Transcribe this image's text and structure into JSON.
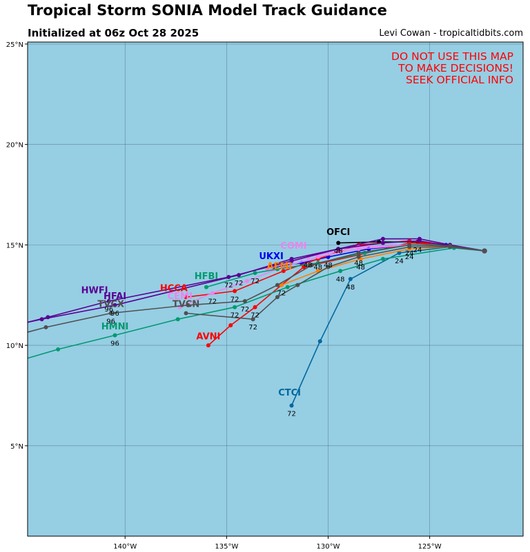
{
  "header": {
    "title": "Tropical Storm SONIA Model Track Guidance",
    "subtitle": "Initialized at 06z Oct 28 2025",
    "credit": "Levi Cowan - tropicaltidbits.com"
  },
  "map": {
    "ocean_color": "#96cee4",
    "warning": [
      "DO NOT USE THIS MAP",
      "TO MAKE DECISIONS!",
      "SEEK OFFICIAL INFO"
    ],
    "warning_color": "#ff0000",
    "lat_range": [
      0.5,
      25.1
    ],
    "lon_range": [
      -144.8,
      -120.4
    ],
    "lat_ticks": [
      {
        "value": 5,
        "label": "5°N"
      },
      {
        "value": 10,
        "label": "10°N"
      },
      {
        "value": 15,
        "label": "15°N"
      },
      {
        "value": 20,
        "label": "20°N"
      },
      {
        "value": 25,
        "label": "25°N"
      }
    ],
    "lon_ticks": [
      {
        "value": -140,
        "label": "140°W"
      },
      {
        "value": -135,
        "label": "135°W"
      },
      {
        "value": -130,
        "label": "130°W"
      },
      {
        "value": -125,
        "label": "125°W"
      }
    ]
  },
  "chart_data": {
    "type": "line",
    "tracks": [
      {
        "model": "OFCI",
        "color": "#000000",
        "label_at": [
          -129.5,
          15.5
        ],
        "points": [
          [
            -122.3,
            14.7
          ],
          [
            -124.0,
            14.95
          ],
          [
            -125.6,
            15.15
          ],
          [
            -127.5,
            15.15
          ],
          [
            -129.5,
            15.1
          ]
        ],
        "hour_labels": [
          {
            "text": "24",
            "at": [
              -125.6,
              15.15
            ]
          },
          {
            "text": "48",
            "at": [
              -129.5,
              15.1
            ]
          }
        ]
      },
      {
        "model": "UKXI",
        "color": "#0000ee",
        "label_at": [
          -132.8,
          14.3
        ],
        "points": [
          [
            -122.3,
            14.7
          ],
          [
            -124.2,
            15.0
          ],
          [
            -126.0,
            15.0
          ],
          [
            -128.0,
            14.8
          ],
          [
            -130.0,
            14.4
          ],
          [
            -131.3,
            14.1
          ],
          [
            -132.7,
            13.9
          ]
        ],
        "hour_labels": [
          {
            "text": "24",
            "at": [
              -126.0,
              15.0
            ]
          },
          {
            "text": "48",
            "at": [
              -130.0,
              14.4
            ]
          }
        ]
      },
      {
        "model": "CTCI",
        "color": "#00689c",
        "label_at": [
          -131.9,
          7.5
        ],
        "points": [
          [
            -122.3,
            14.7
          ],
          [
            -124.0,
            14.9
          ],
          [
            -126.5,
            14.6
          ],
          [
            -128.9,
            13.3
          ],
          [
            -130.4,
            10.2
          ],
          [
            -131.8,
            7.0
          ]
        ],
        "hour_labels": [
          {
            "text": "24",
            "at": [
              -126.5,
              14.6
            ]
          },
          {
            "text": "48",
            "at": [
              -128.9,
              13.3
            ]
          },
          {
            "text": "72",
            "at": [
              -131.8,
              7.0
            ]
          }
        ]
      },
      {
        "model": "AVNI",
        "color": "#ff0000",
        "label_at": [
          -135.9,
          10.3
        ],
        "points": [
          [
            -122.3,
            14.7
          ],
          [
            -124.0,
            15.0
          ],
          [
            -126.0,
            15.1
          ],
          [
            -128.5,
            14.5
          ],
          [
            -131.2,
            13.9
          ],
          [
            -132.3,
            13.0
          ],
          [
            -133.6,
            11.9
          ],
          [
            -134.8,
            11.0
          ],
          [
            -135.9,
            10.0
          ]
        ],
        "hour_labels": [
          {
            "text": "48",
            "at": [
              -128.5,
              14.5
            ]
          },
          {
            "text": "72",
            "at": [
              -133.6,
              11.9
            ]
          }
        ]
      },
      {
        "model": "HCCA",
        "color": "#ff0000",
        "label_at": [
          -137.6,
          12.7
        ],
        "points": [
          [
            -122.3,
            14.7
          ],
          [
            -124.0,
            15.0
          ],
          [
            -126.0,
            15.2
          ],
          [
            -128.5,
            15.0
          ],
          [
            -130.5,
            14.3
          ],
          [
            -132.2,
            13.7
          ],
          [
            -134.6,
            12.7
          ],
          [
            -137.0,
            12.4
          ]
        ],
        "hour_labels": [
          {
            "text": "48",
            "at": [
              -130.5,
              14.3
            ]
          },
          {
            "text": "72",
            "at": [
              -134.6,
              12.7
            ]
          }
        ]
      },
      {
        "model": "CEMI",
        "color": "#ee82ee",
        "label_at": [
          -137.3,
          12.3
        ],
        "points": [
          [
            -122.3,
            14.7
          ],
          [
            -124.0,
            15.0
          ],
          [
            -126.0,
            15.0
          ],
          [
            -128.5,
            14.8
          ],
          [
            -130.5,
            14.4
          ],
          [
            -132.5,
            13.8
          ],
          [
            -134.0,
            13.2
          ],
          [
            -135.7,
            12.6
          ],
          [
            -137.3,
            11.9
          ]
        ],
        "hour_labels": [
          {
            "text": "72",
            "at": [
              -135.7,
              12.6
            ]
          }
        ]
      },
      {
        "model": "COMI",
        "color": "#ee82ee",
        "label_at": [
          -131.7,
          14.8
        ],
        "points": [
          [
            -122.3,
            14.7
          ],
          [
            -124.0,
            14.95
          ],
          [
            -126.0,
            15.0
          ],
          [
            -128.5,
            14.9
          ],
          [
            -131.0,
            14.4
          ],
          [
            -133.0,
            13.8
          ]
        ],
        "hour_labels": [
          {
            "text": "48",
            "at": [
              -131.0,
              14.4
            ]
          }
        ]
      },
      {
        "model": "AEMI",
        "color": "#ff8000",
        "label_at": [
          -132.4,
          13.8
        ],
        "points": [
          [
            -122.3,
            14.7
          ],
          [
            -124.0,
            14.9
          ],
          [
            -126.0,
            14.8
          ],
          [
            -128.4,
            14.3
          ],
          [
            -130.5,
            13.7
          ],
          [
            -132.3,
            13.0
          ]
        ],
        "hour_labels": [
          {
            "text": "24",
            "at": [
              -126.0,
              14.8
            ]
          },
          {
            "text": "48",
            "at": [
              -128.4,
              14.3
            ]
          },
          {
            "text": "72",
            "at": [
              -132.3,
              13.0
            ]
          }
        ]
      },
      {
        "model": "HFBI",
        "color": "#009a6e",
        "label_at": [
          -136.0,
          13.3
        ],
        "points": [
          [
            -122.3,
            14.7
          ],
          [
            -124.0,
            15.0
          ],
          [
            -126.0,
            15.0
          ],
          [
            -128.2,
            14.6
          ],
          [
            -130.5,
            14.1
          ],
          [
            -132.5,
            13.8
          ],
          [
            -133.6,
            13.6
          ],
          [
            -136.0,
            12.9
          ]
        ],
        "hour_labels": [
          {
            "text": "72",
            "at": [
              -133.6,
              13.6
            ]
          }
        ]
      },
      {
        "model": "HMNI",
        "color": "#009a6e",
        "label_at": [
          -140.5,
          10.8
        ],
        "points": [
          [
            -122.3,
            14.7
          ],
          [
            -123.8,
            14.85
          ],
          [
            -127.3,
            14.3
          ],
          [
            -129.4,
            13.7
          ],
          [
            -132.0,
            12.9
          ],
          [
            -134.6,
            11.9
          ],
          [
            -137.4,
            11.3
          ],
          [
            -140.5,
            10.5
          ],
          [
            -143.3,
            9.8
          ],
          [
            -145.0,
            9.3
          ]
        ],
        "hour_labels": [
          {
            "text": "48",
            "at": [
              -129.4,
              13.7
            ]
          },
          {
            "text": "72",
            "at": [
              -134.6,
              11.9
            ]
          },
          {
            "text": "96",
            "at": [
              -140.5,
              10.5
            ]
          }
        ]
      },
      {
        "model": "HWFI",
        "color": "#5a0094",
        "label_at": [
          -141.5,
          12.6
        ],
        "points": [
          [
            -122.3,
            14.7
          ],
          [
            -124.0,
            15.0
          ],
          [
            -125.5,
            15.3
          ],
          [
            -127.3,
            15.3
          ],
          [
            -129.5,
            14.8
          ],
          [
            -131.8,
            14.2
          ],
          [
            -134.9,
            13.4
          ],
          [
            -140.8,
            12.2
          ],
          [
            -143.8,
            11.4
          ],
          [
            -145.0,
            11.1
          ]
        ],
        "hour_labels": [
          {
            "text": "72",
            "at": [
              -134.9,
              13.4
            ]
          },
          {
            "text": "96",
            "at": [
              -140.8,
              12.2
            ]
          }
        ]
      },
      {
        "model": "HFAI",
        "color": "#5a0094",
        "label_at": [
          -140.5,
          12.3
        ],
        "points": [
          [
            -122.3,
            14.7
          ],
          [
            -124.0,
            14.95
          ],
          [
            -125.5,
            15.2
          ],
          [
            -127.3,
            15.1
          ],
          [
            -129.5,
            14.8
          ],
          [
            -131.8,
            14.3
          ],
          [
            -134.4,
            13.5
          ],
          [
            -140.5,
            12.0
          ],
          [
            -144.1,
            11.3
          ],
          [
            -145.0,
            11.1
          ]
        ],
        "hour_labels": [
          {
            "text": "72",
            "at": [
              -134.4,
              13.5
            ]
          },
          {
            "text": "96",
            "at": [
              -140.5,
              12.0
            ]
          }
        ]
      },
      {
        "model": "TVCX",
        "color": "#505050",
        "label_at": [
          -140.7,
          11.9
        ],
        "points": [
          [
            -122.3,
            14.7
          ],
          [
            -124.0,
            14.95
          ],
          [
            -126.0,
            15.0
          ],
          [
            -128.5,
            14.6
          ],
          [
            -130.8,
            14.0
          ],
          [
            -132.5,
            13.0
          ],
          [
            -134.1,
            12.2
          ],
          [
            -136.9,
            12.0
          ],
          [
            -140.7,
            11.6
          ],
          [
            -143.9,
            10.9
          ],
          [
            -145.0,
            10.6
          ]
        ],
        "hour_labels": [
          {
            "text": "72",
            "at": [
              -134.1,
              12.2
            ]
          },
          {
            "text": "96",
            "at": [
              -140.7,
              11.6
            ]
          }
        ]
      },
      {
        "model": "TVCN",
        "color": "#505050",
        "label_at": [
          -137.0,
          11.9
        ],
        "points": [
          [
            -122.3,
            14.7
          ],
          [
            -124.0,
            14.9
          ],
          [
            -126.0,
            14.9
          ],
          [
            -128.5,
            14.4
          ],
          [
            -130.0,
            13.9
          ],
          [
            -131.5,
            13.0
          ],
          [
            -132.5,
            12.4
          ],
          [
            -133.7,
            11.3
          ],
          [
            -137.0,
            11.6
          ]
        ],
        "hour_labels": [
          {
            "text": "72",
            "at": [
              -133.7,
              11.3
            ]
          }
        ]
      }
    ]
  }
}
